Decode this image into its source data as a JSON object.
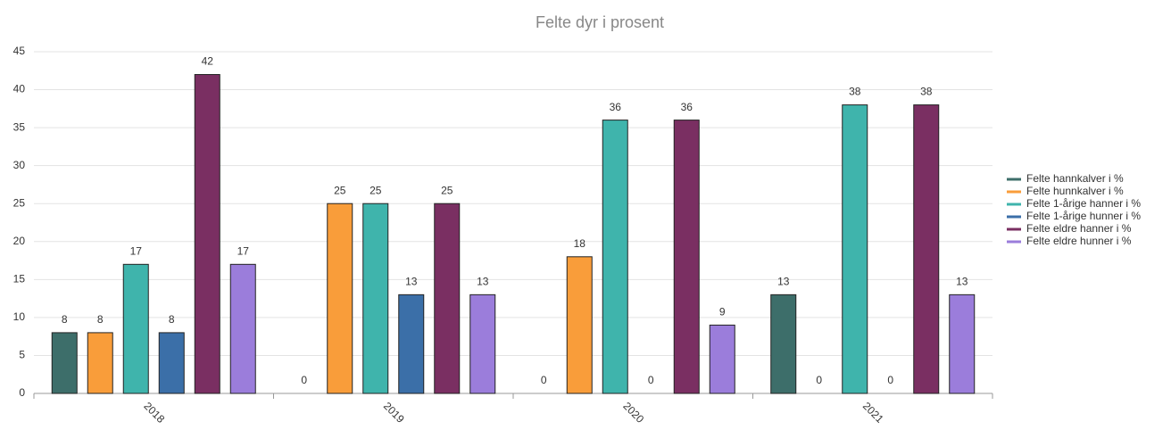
{
  "chart_data": {
    "type": "bar",
    "title": "Felte dyr i prosent",
    "categories": [
      "2018",
      "2019",
      "2020",
      "2021"
    ],
    "series": [
      {
        "name": "Felte hannkalver i %",
        "color": "#3d6e6a",
        "values": [
          8,
          0,
          0,
          13
        ]
      },
      {
        "name": "Felte hunnkalver i %",
        "color": "#f99d3a",
        "values": [
          8,
          25,
          18,
          0
        ]
      },
      {
        "name": "Felte 1-årige hanner i %",
        "color": "#3fb4ac",
        "values": [
          17,
          25,
          36,
          38
        ]
      },
      {
        "name": "Felte 1-årige hunner i %",
        "color": "#3b6fa8",
        "values": [
          8,
          13,
          0,
          0
        ]
      },
      {
        "name": "Felte eldre hanner i %",
        "color": "#7a2f62",
        "values": [
          42,
          25,
          36,
          38
        ]
      },
      {
        "name": "Felte eldre hunner i %",
        "color": "#9b7ddb",
        "values": [
          17,
          13,
          9,
          13
        ]
      }
    ],
    "ylim": [
      0,
      45
    ],
    "yticks": [
      0,
      5,
      10,
      15,
      20,
      25,
      30,
      35,
      40,
      45
    ],
    "grid": true,
    "legend": "right"
  }
}
